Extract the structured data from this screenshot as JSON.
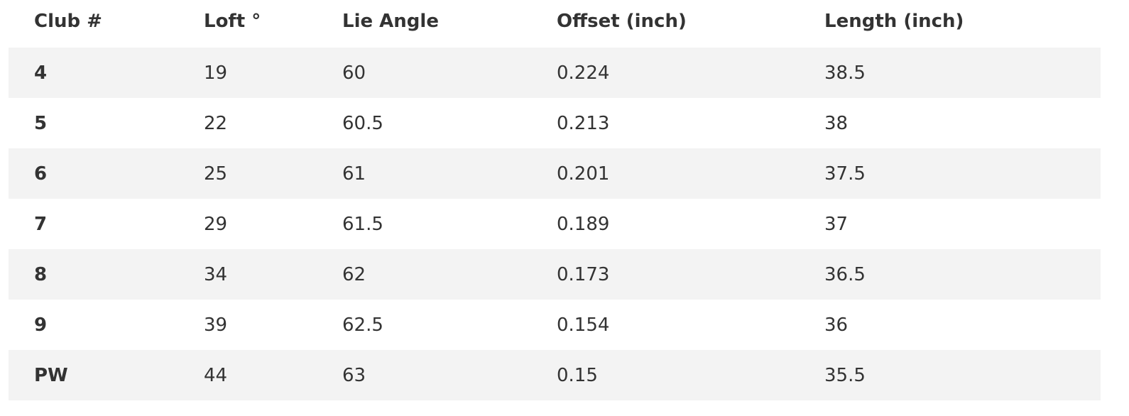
{
  "table": {
    "header": [
      "Club #",
      "Loft °",
      "Lie Angle",
      "Offset (inch)",
      "Length (inch)"
    ],
    "rows": [
      [
        "4",
        "19",
        "60",
        "0.224",
        "38.5"
      ],
      [
        "5",
        "22",
        "60.5",
        "0.213",
        "38"
      ],
      [
        "6",
        "25",
        "61",
        "0.201",
        "37.5"
      ],
      [
        "7",
        "29",
        "61.5",
        "0.189",
        "37"
      ],
      [
        "8",
        "34",
        "62",
        "0.173",
        "36.5"
      ],
      [
        "9",
        "39",
        "62.5",
        "0.154",
        "36"
      ],
      [
        "PW",
        "44",
        "63",
        "0.15",
        "35.5"
      ]
    ]
  }
}
